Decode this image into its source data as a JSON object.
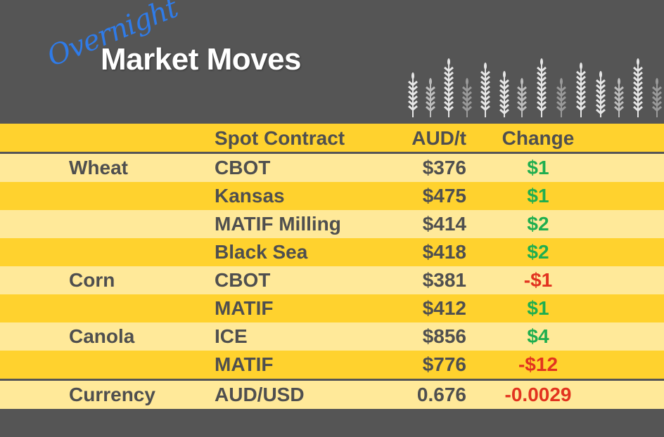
{
  "header": {
    "script_title": "Overnight",
    "main_title": "Market Moves",
    "decoration_icon": "wheat-stalks-icon"
  },
  "table": {
    "columns": [
      "",
      "Spot Contract",
      "AUD/t",
      "Change"
    ],
    "rows": [
      {
        "commodity": "Wheat",
        "contract": "CBOT",
        "price": "$376",
        "change": "$1",
        "direction": "up"
      },
      {
        "commodity": "",
        "contract": "Kansas",
        "price": "$475",
        "change": "$1",
        "direction": "up"
      },
      {
        "commodity": "",
        "contract": "MATIF Milling",
        "price": "$414",
        "change": "$2",
        "direction": "up"
      },
      {
        "commodity": "",
        "contract": "Black Sea",
        "price": "$418",
        "change": "$2",
        "direction": "up"
      },
      {
        "commodity": "Corn",
        "contract": "CBOT",
        "price": "$381",
        "change": "-$1",
        "direction": "down"
      },
      {
        "commodity": "",
        "contract": "MATIF",
        "price": "$412",
        "change": "$1",
        "direction": "up"
      },
      {
        "commodity": "Canola",
        "contract": "ICE",
        "price": "$856",
        "change": "$4",
        "direction": "up"
      },
      {
        "commodity": "",
        "contract": "MATIF",
        "price": "$776",
        "change": "-$12",
        "direction": "down"
      },
      {
        "commodity": "Currency",
        "contract": "AUD/USD",
        "price": "0.676",
        "change": "-0.0029",
        "direction": "down"
      }
    ]
  },
  "colors": {
    "background": "#555555",
    "row_dark": "#FFD22E",
    "row_light": "#FFE999",
    "positive": "#1fae4f",
    "negative": "#e2331f",
    "script_title": "#2f7be8"
  }
}
